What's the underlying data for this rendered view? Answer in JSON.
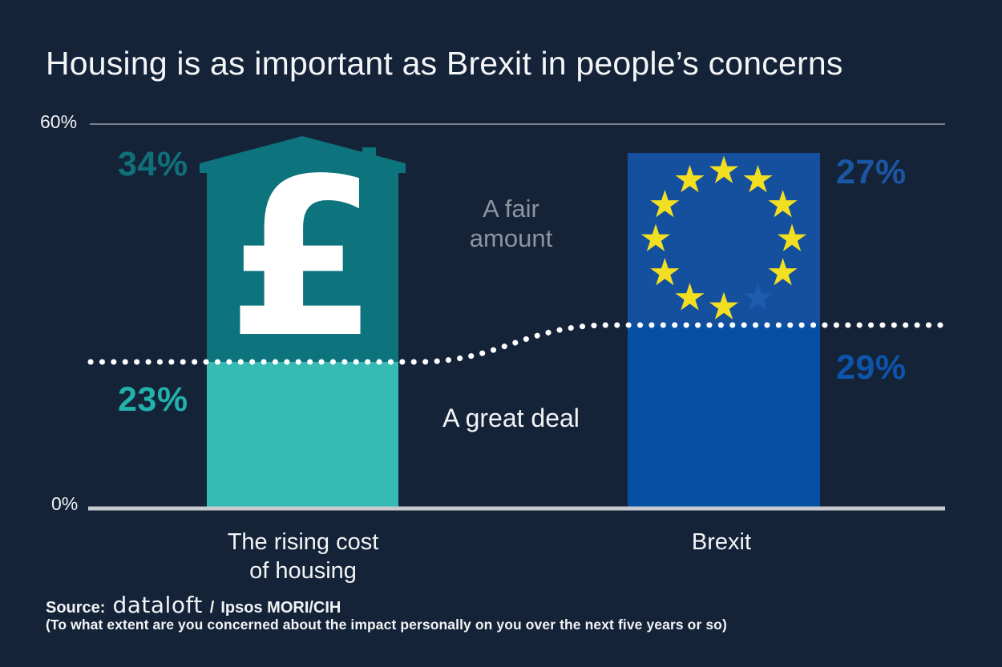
{
  "title": "Housing is as important as Brexit in people’s concerns",
  "y_axis": {
    "top_tick": "60%",
    "bottom_tick": "0%"
  },
  "bars": {
    "housing": {
      "fair_amount_value": "34%",
      "great_deal_value": "23%",
      "label_line1": "The rising cost",
      "label_line2": "of housing"
    },
    "brexit": {
      "fair_amount_value": "27%",
      "great_deal_value": "29%",
      "label": "Brexit"
    }
  },
  "segment_labels": {
    "fair_line1": "A fair",
    "fair_line2": "amount",
    "great": "A great deal"
  },
  "pound_symbol": "£",
  "source": {
    "prefix": "Source:",
    "brand": "dataloft",
    "separator": "/",
    "suffix": "Ipsos MORI/CIH",
    "question": "(To what extent are you concerned about the impact personally on you over the next five years or so)"
  },
  "colors": {
    "bg": "#152338",
    "teal_dark": "#0d737c",
    "teal_light": "#36bab3",
    "teal_label_dark": "#10707a",
    "teal_label_light": "#22b1ab",
    "blue_dark": "#14509e",
    "blue_light": "#0550a5",
    "blue_label_top": "#1a56a4",
    "blue_label_bottom": "#0d54ab",
    "star_yellow": "#f3df22",
    "star_faded": "#1e5cb0",
    "grid": "#79818f",
    "baseline": "#c7cacf",
    "text_gray": "#8d95a3"
  },
  "chart_data": {
    "type": "bar",
    "stacked": true,
    "title": "Housing is as important as Brexit in people’s concerns",
    "categories": [
      "The rising cost of housing",
      "Brexit"
    ],
    "series": [
      {
        "name": "A great deal",
        "values": [
          23,
          29
        ]
      },
      {
        "name": "A fair amount",
        "values": [
          34,
          27
        ]
      }
    ],
    "totals": [
      57,
      56
    ],
    "xlabel": "",
    "ylabel": "",
    "ylim": [
      0,
      60
    ],
    "yticks_shown": [
      "0%",
      "60%"
    ],
    "grid": "horizontal rule at 60% and axis baseline at 0% only",
    "legend_position": "inline between the two bars",
    "annotations": [
      "white dotted divider traces the boundary between the two stacked segments across the full chart width",
      "housing bar drawn as a house silhouette with chimney containing a white £ symbol",
      "brexit bar shows EU flag circle of 12 stars with one star faded (11 yellow, 1 dark blue)"
    ],
    "source": "Source: dataloft / Ipsos MORI/CIH (To what extent are you concerned about the impact personally on you over the next five years or so)"
  }
}
